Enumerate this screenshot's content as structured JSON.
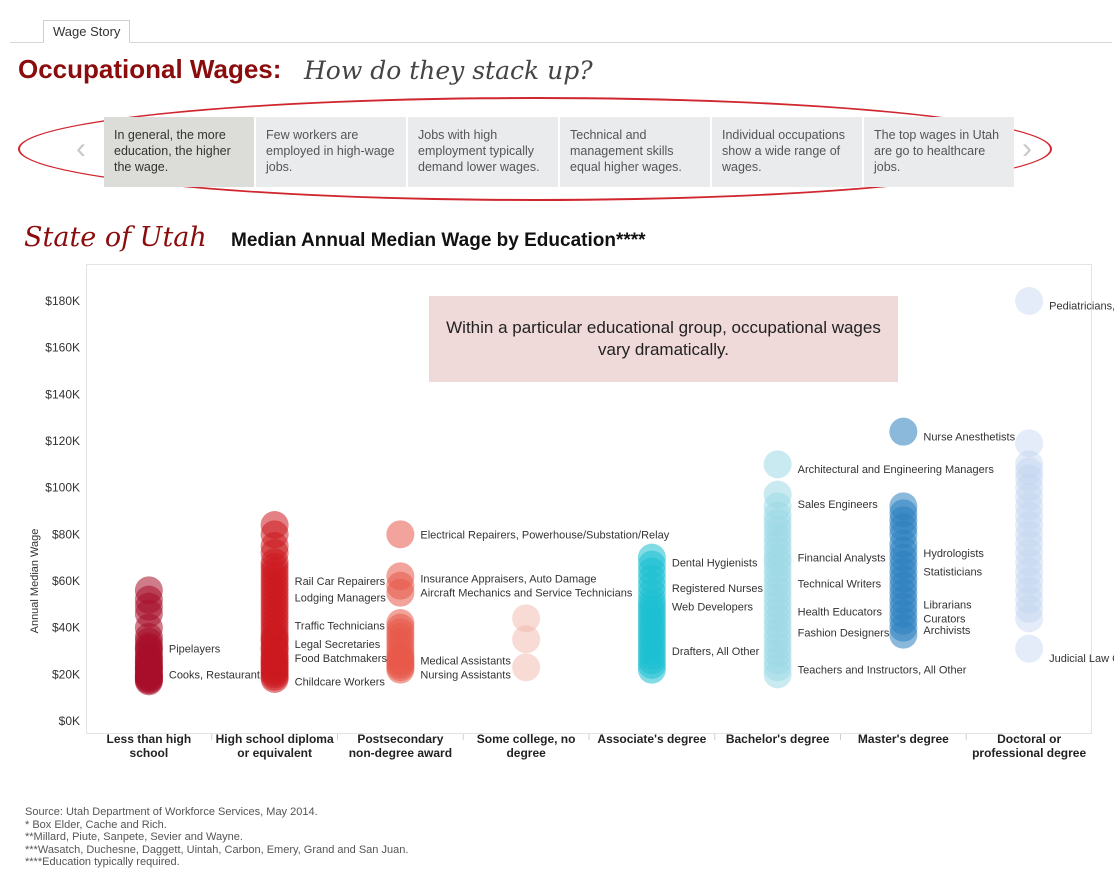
{
  "tab": {
    "label": "Wage Story"
  },
  "header": {
    "title": "Occupational Wages:",
    "subtitle": "How do they stack up?"
  },
  "story": {
    "cards": [
      {
        "text": "In general, the more education, the higher the wage."
      },
      {
        "text": "Few workers are employed in high-wage jobs."
      },
      {
        "text": "Jobs with high employment typically demand lower wages."
      },
      {
        "text": "Technical and management skills equal higher wages."
      },
      {
        "text": "Individual occupations show a wide range of wages."
      },
      {
        "text": "The top wages in Utah are go to healthcare jobs."
      }
    ],
    "active_index": 0,
    "prev_glyph": "‹",
    "next_glyph": "›"
  },
  "section": {
    "region": "State of Utah",
    "title": "Median Annual Median Wage by Education****"
  },
  "note": {
    "text": "Within a particular educational group, occupational wages vary dramatically."
  },
  "chart_data": {
    "type": "scatter",
    "title": "Median Annual Median Wage by Education****",
    "ylabel": "Annual Median Wage",
    "ylim": [
      0,
      190000
    ],
    "yticks": [
      {
        "value": 0,
        "label": "$0K"
      },
      {
        "value": 20000,
        "label": "$20K"
      },
      {
        "value": 40000,
        "label": "$40K"
      },
      {
        "value": 60000,
        "label": "$60K"
      },
      {
        "value": 80000,
        "label": "$80K"
      },
      {
        "value": 100000,
        "label": "$100K"
      },
      {
        "value": 120000,
        "label": "$120K"
      },
      {
        "value": 140000,
        "label": "$140K"
      },
      {
        "value": 160000,
        "label": "$160K"
      },
      {
        "value": 180000,
        "label": "$180K"
      }
    ],
    "grid": false,
    "categories": [
      "Less than high school",
      "High school diploma or equivalent",
      "Postsecondary non-degree award",
      "Some college, no degree",
      "Associate's degree",
      "Bachelor's degree",
      "Master's degree",
      "Doctoral or professional degree"
    ],
    "colors": [
      "#a80f2a",
      "#cc1a1f",
      "#e8594a",
      "#f1b7ac",
      "#1cbfd1",
      "#9dd9e5",
      "#2b7fc0",
      "#c2d5f0"
    ],
    "series": [
      {
        "category": "Less than high school",
        "opacity": 0.55,
        "values": [
          56000,
          52000,
          49000,
          46000,
          40000,
          36000,
          34000,
          32000,
          30000,
          28000,
          26000,
          25000,
          24000,
          23000,
          22000,
          21000,
          20000,
          19500,
          19000,
          18500,
          18000,
          17500,
          17000,
          22500,
          27000,
          31000
        ]
      },
      {
        "category": "High school diploma or equivalent",
        "opacity": 0.55,
        "values": [
          84000,
          80000,
          75000,
          72000,
          68000,
          66000,
          64000,
          62000,
          60000,
          58000,
          56000,
          54000,
          52000,
          50000,
          48000,
          46000,
          44000,
          42000,
          40000,
          38000,
          36000,
          35000,
          34000,
          32000,
          31000,
          30000,
          28000,
          27000,
          26000,
          25000,
          24000,
          23000,
          22000,
          21000,
          20000,
          19000,
          18000
        ]
      },
      {
        "category": "Postsecondary non-degree award",
        "opacity": 0.55,
        "values": [
          80000,
          62000,
          58000,
          55000,
          42000,
          40000,
          38000,
          36000,
          34000,
          32000,
          30000,
          28000,
          27000,
          26000,
          25000,
          24000,
          23000,
          22000
        ]
      },
      {
        "category": "Some college, no degree",
        "opacity": 0.5,
        "values": [
          44000,
          35000,
          23000
        ]
      },
      {
        "category": "Associate's degree",
        "opacity": 0.55,
        "values": [
          70000,
          67000,
          64000,
          61000,
          58000,
          55000,
          52000,
          50000,
          48000,
          46000,
          44000,
          42000,
          40000,
          38000,
          36000,
          34000,
          32000,
          30000,
          28000,
          26000,
          24000,
          22000
        ]
      },
      {
        "category": "Bachelor's degree",
        "opacity": 0.55,
        "values": [
          110000,
          97000,
          92000,
          88000,
          85000,
          82000,
          79000,
          76000,
          73000,
          70000,
          68000,
          65000,
          62000,
          59000,
          56000,
          53000,
          50000,
          47000,
          44000,
          41000,
          38000,
          35000,
          32000,
          29000,
          26000,
          23000,
          20000
        ]
      },
      {
        "category": "Master's degree",
        "opacity": 0.55,
        "values": [
          124000,
          92000,
          89000,
          86000,
          83000,
          80000,
          76000,
          73000,
          70000,
          67000,
          64000,
          61000,
          58000,
          55000,
          52000,
          49000,
          46000,
          43000,
          40000,
          37000
        ]
      },
      {
        "category": "Doctoral or professional degree",
        "opacity": 0.45,
        "values": [
          180000,
          119000,
          110000,
          107000,
          104000,
          100000,
          96000,
          92000,
          88000,
          84000,
          80000,
          76000,
          72000,
          68000,
          64000,
          60000,
          56000,
          52000,
          48000,
          44000,
          31000
        ]
      }
    ],
    "annotations": [
      {
        "category": "Less than high school",
        "text": "Pipelayers",
        "value": 31000
      },
      {
        "category": "Less than high school",
        "text": "Cooks, Restaurant",
        "value": 20000
      },
      {
        "category": "High school diploma or equivalent",
        "text": "Rail Car Repairers",
        "value": 60000
      },
      {
        "category": "High school diploma or equivalent",
        "text": "Lodging Managers",
        "value": 53000
      },
      {
        "category": "High school diploma or equivalent",
        "text": "Traffic Technicians",
        "value": 41000
      },
      {
        "category": "High school diploma or equivalent",
        "text": "Legal Secretaries",
        "value": 33000
      },
      {
        "category": "High school diploma or equivalent",
        "text": "Food Batchmakers",
        "value": 27000
      },
      {
        "category": "High school diploma or equivalent",
        "text": "Childcare Workers",
        "value": 17000
      },
      {
        "category": "Postsecondary non-degree award",
        "text": "Electrical Repairers, Powerhouse/Substation/Relay",
        "value": 80000
      },
      {
        "category": "Postsecondary non-degree award",
        "text": "Insurance Appraisers, Auto Damage",
        "value": 61000
      },
      {
        "category": "Postsecondary non-degree award",
        "text": "Aircraft Mechanics and Service Technicians",
        "value": 55000
      },
      {
        "category": "Postsecondary non-degree award",
        "text": "Medical Assistants",
        "value": 26000
      },
      {
        "category": "Postsecondary non-degree award",
        "text": "Nursing Assistants",
        "value": 20000
      },
      {
        "category": "Associate's degree",
        "text": "Dental Hygienists",
        "value": 68000
      },
      {
        "category": "Associate's degree",
        "text": "Registered Nurses",
        "value": 57000
      },
      {
        "category": "Associate's degree",
        "text": "Web Developers",
        "value": 49000
      },
      {
        "category": "Associate's degree",
        "text": "Drafters, All Other",
        "value": 30000
      },
      {
        "category": "Bachelor's degree",
        "text": "Architectural and Engineering Managers",
        "value": 108000
      },
      {
        "category": "Bachelor's degree",
        "text": "Sales Engineers",
        "value": 93000
      },
      {
        "category": "Bachelor's degree",
        "text": "Financial Analysts",
        "value": 70000
      },
      {
        "category": "Bachelor's degree",
        "text": "Technical Writers",
        "value": 59000
      },
      {
        "category": "Bachelor's degree",
        "text": "Health Educators",
        "value": 47000
      },
      {
        "category": "Bachelor's degree",
        "text": "Fashion Designers",
        "value": 38000
      },
      {
        "category": "Bachelor's degree",
        "text": "Teachers and Instructors, All Other",
        "value": 22000
      },
      {
        "category": "Master's degree",
        "text": "Nurse Anesthetists",
        "value": 122000
      },
      {
        "category": "Master's degree",
        "text": "Hydrologists",
        "value": 72000
      },
      {
        "category": "Master's degree",
        "text": "Statisticians",
        "value": 64000
      },
      {
        "category": "Master's degree",
        "text": "Librarians",
        "value": 50000
      },
      {
        "category": "Master's degree",
        "text": "Curators",
        "value": 44000
      },
      {
        "category": "Master's degree",
        "text": "Archivists",
        "value": 39000
      },
      {
        "category": "Doctoral or professional degree",
        "text": "Pediatricians, General",
        "value": 178000
      },
      {
        "category": "Doctoral or professional degree",
        "text": "Judicial Law Clerks",
        "value": 27000
      }
    ]
  },
  "footer": {
    "lines": [
      "Source: Utah Department of Workforce Services, May 2014.",
      "* Box Elder, Cache and Rich.",
      "**Millard, Piute, Sanpete, Sevier and Wayne.",
      "***Wasatch, Duchesne, Daggett, Uintah, Carbon, Emery, Grand and San Juan.",
      "****Education typically required."
    ]
  }
}
